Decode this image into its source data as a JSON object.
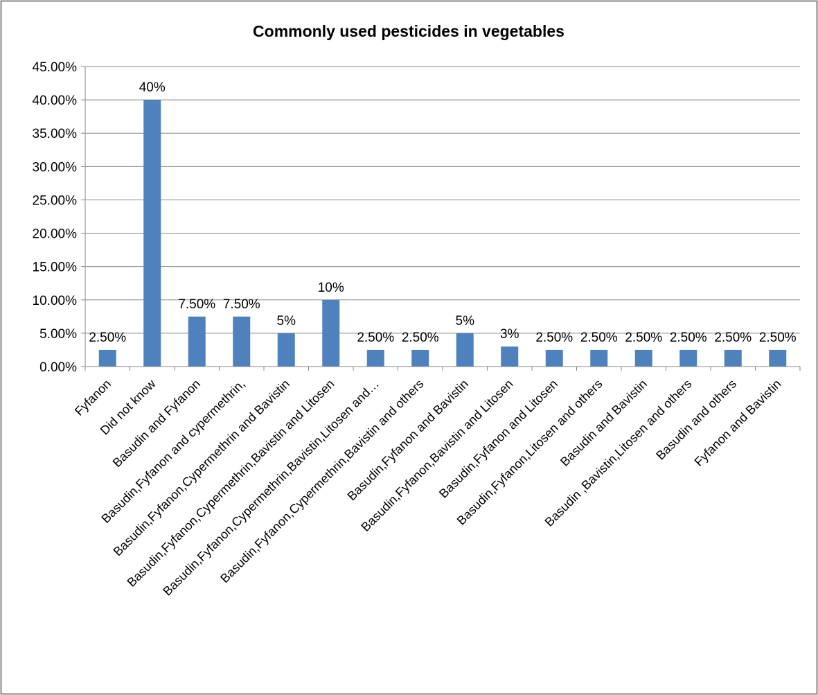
{
  "chart_data": {
    "type": "bar",
    "title": "Commonly used pesticides in vegetables",
    "xlabel": "",
    "ylabel": "",
    "ylim": [
      0,
      0.45
    ],
    "y_ticks": [
      "0.00%",
      "5.00%",
      "10.00%",
      "15.00%",
      "20.00%",
      "25.00%",
      "30.00%",
      "35.00%",
      "40.00%",
      "45.00%"
    ],
    "grid": true,
    "legend": "none",
    "bar_color": "#4f81bd",
    "categories": [
      "Fyfanon",
      "Did not know",
      "Basudin and Fyfanon",
      "Basudin,Fyfanon and cypermethrin,",
      "Basudin,Fyfanon,Cypermethrin and Bavistin",
      "Basudin,Fyfanon,Cypermethrin,Bavistin and Litosen",
      "Basudin,Fyfanon,Cypermethrin,Bavistin,Litosen and…",
      "Basudin,Fyfanon,Cypermethrin,Bavistin and others",
      "Basudin,Fyfanon and Bavistin",
      "Basudin,Fyfanon,Bavistin and Litosen",
      "Basudin,Fyfanon and Litosen",
      "Basudin,Fyfanon,Litosen and others",
      "Basudin and Bavistin",
      "Basudin ,Bavistin,Litosen and others",
      "Basudin and others",
      "Fyfanon and Bavistin"
    ],
    "values": [
      0.025,
      0.4,
      0.075,
      0.075,
      0.05,
      0.1,
      0.025,
      0.025,
      0.05,
      0.03,
      0.025,
      0.025,
      0.025,
      0.025,
      0.025,
      0.025
    ],
    "data_labels": [
      "2.50%",
      "40%",
      "7.50%",
      "7.50%",
      "5%",
      "10%",
      "2.50%",
      "2.50%",
      "5%",
      "3%",
      "2.50%",
      "2.50%",
      "2.50%",
      "2.50%",
      "2.50%",
      "2.50%"
    ]
  }
}
